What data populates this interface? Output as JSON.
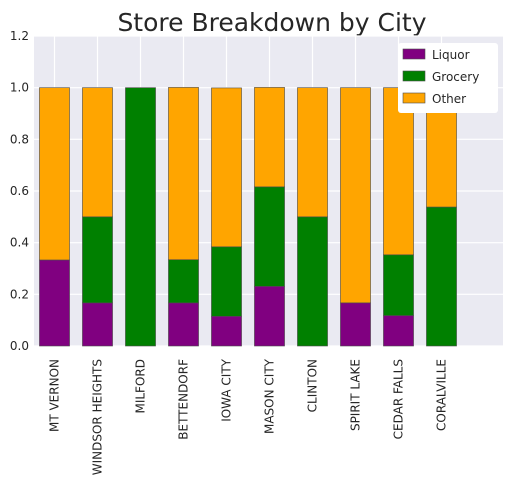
{
  "chart_data": {
    "type": "bar",
    "stacked": true,
    "title": "Store Breakdown by City",
    "xlabel": "",
    "ylabel": "",
    "ylim": [
      0,
      1.2
    ],
    "yticks": [
      "0.0",
      "0.2",
      "0.4",
      "0.6",
      "0.8",
      "1.0",
      "1.2"
    ],
    "grid": true,
    "legend_position": "top-right",
    "categories": [
      "MT VERNON",
      "WINDSOR HEIGHTS",
      "MILFORD",
      "BETTENDORF",
      "IOWA CITY",
      "MASON CITY",
      "CLINTON",
      "SPIRIT LAKE",
      "CEDAR FALLS",
      "CORALVILLE"
    ],
    "series": [
      {
        "name": "Liquor",
        "color": "#800080",
        "values": [
          0.333,
          0.167,
          0.0,
          0.167,
          0.115,
          0.231,
          0.0,
          0.167,
          0.118,
          0.0
        ]
      },
      {
        "name": "Grocery",
        "color": "#008000",
        "values": [
          0.0,
          0.333,
          1.0,
          0.167,
          0.269,
          0.385,
          0.5,
          0.0,
          0.235,
          0.538
        ]
      },
      {
        "name": "Other",
        "color": "#ffa500",
        "values": [
          0.667,
          0.5,
          0.0,
          0.667,
          0.615,
          0.385,
          0.5,
          0.833,
          0.647,
          0.462
        ]
      }
    ],
    "background_color": "#eaeaf2",
    "grid_color": "#ffffff"
  }
}
